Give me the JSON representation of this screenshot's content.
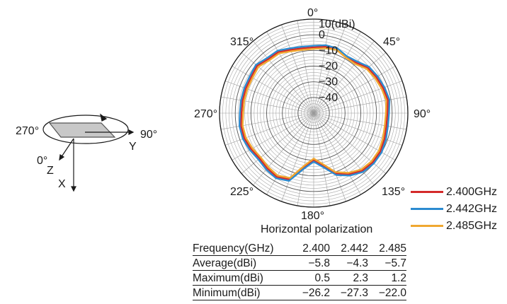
{
  "chart_data": {
    "type": "polar-line",
    "subtitle": "Horizontal polarization",
    "radial_unit_label": "10(dBi)",
    "radial_range": [
      -50,
      10
    ],
    "radial_ticks": [
      "0",
      "−10",
      "−20",
      "−30",
      "−40"
    ],
    "angle_labels": [
      "0°",
      "45°",
      "90°",
      "135°",
      "180°",
      "225°",
      "270°",
      "315°"
    ],
    "series": [
      {
        "name": "2.400GHz",
        "color": "#d42a2a",
        "angles": [
          0,
          10,
          20,
          30,
          40,
          50,
          60,
          70,
          80,
          90,
          100,
          110,
          120,
          130,
          140,
          150,
          160,
          170,
          180,
          190,
          200,
          210,
          220,
          230,
          240,
          250,
          260,
          270,
          280,
          290,
          300,
          310,
          320,
          330,
          340,
          350
        ],
        "values": [
          -8,
          -7,
          -7,
          -9,
          -8,
          -5,
          -4,
          -3,
          -2,
          -3,
          -3,
          -2,
          -1,
          -1,
          -2,
          -5,
          -9,
          -16,
          -20,
          -15,
          -5,
          -3,
          -4,
          -5,
          -4,
          -3,
          -3,
          -4,
          -4,
          -4,
          -4,
          -3,
          -5,
          -5,
          -7,
          -8
        ]
      },
      {
        "name": "2.442GHz",
        "color": "#2c8bd0",
        "angles": [
          0,
          10,
          20,
          30,
          40,
          50,
          60,
          70,
          80,
          90,
          100,
          110,
          120,
          130,
          140,
          150,
          160,
          170,
          180,
          190,
          200,
          210,
          220,
          230,
          240,
          250,
          260,
          270,
          280,
          290,
          300,
          310,
          320,
          330,
          340,
          350
        ],
        "values": [
          -7,
          -6,
          -6,
          -8,
          -7,
          -4,
          -3,
          -2,
          -1,
          -2,
          -2,
          -1,
          0,
          0,
          -1,
          -4,
          -8,
          -15,
          -19,
          -14,
          -4,
          -2,
          -3,
          -4,
          -3,
          -2,
          -2,
          -3,
          -3,
          -3,
          -3,
          -2,
          -4,
          -4,
          -6,
          -7
        ]
      },
      {
        "name": "2.485GHz",
        "color": "#f0a830",
        "angles": [
          0,
          10,
          20,
          30,
          40,
          50,
          60,
          70,
          80,
          90,
          100,
          110,
          120,
          130,
          140,
          150,
          160,
          170,
          180,
          190,
          200,
          210,
          220,
          230,
          240,
          250,
          260,
          270,
          280,
          290,
          300,
          310,
          320,
          330,
          340,
          350
        ],
        "values": [
          -9,
          -8,
          -7,
          -9,
          -9,
          -6,
          -5,
          -4,
          -3,
          -4,
          -4,
          -3,
          -2,
          -2,
          -3,
          -6,
          -10,
          -17,
          -21,
          -16,
          -6,
          -4,
          -5,
          -6,
          -5,
          -4,
          -4,
          -5,
          -5,
          -5,
          -5,
          -4,
          -6,
          -6,
          -8,
          -9
        ]
      }
    ],
    "table": {
      "header": [
        "Frequency(GHz)",
        "2.400",
        "2.442",
        "2.485"
      ],
      "rows": [
        [
          "Average(dBi)",
          "−5.8",
          "−4.3",
          "−5.7"
        ],
        [
          "Maximum(dBi)",
          "0.5",
          "2.3",
          "1.2"
        ],
        [
          "Minimum(dBi)",
          "−26.2",
          "−27.3",
          "−22.0"
        ]
      ]
    }
  },
  "orientation_diagram": {
    "labels": {
      "left": "270°",
      "right": "90°",
      "front": "0°",
      "z": "Z",
      "x": "X",
      "y": "Y"
    }
  }
}
